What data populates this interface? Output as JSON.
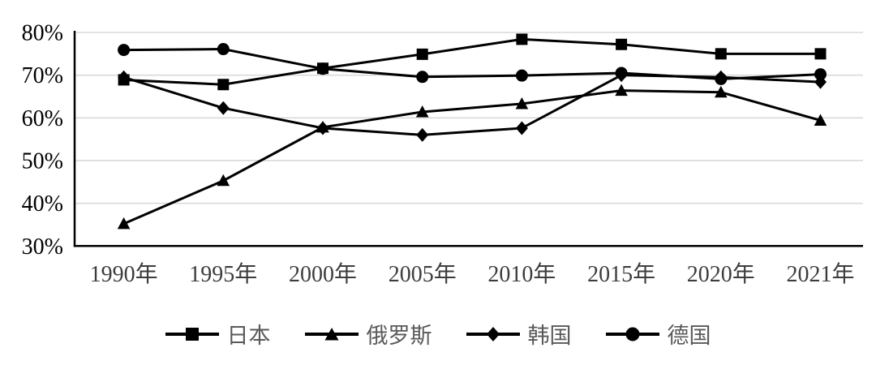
{
  "chart_data": {
    "type": "line",
    "title": "",
    "xlabel": "",
    "ylabel": "",
    "categories": [
      "1990年",
      "1995年",
      "2000年",
      "2005年",
      "2010年",
      "2015年",
      "2020年",
      "2021年"
    ],
    "series": [
      {
        "name": "日本",
        "marker": "square",
        "values": [
          68.9,
          67.8,
          71.6,
          74.9,
          78.4,
          77.2,
          75.0,
          75.0
        ]
      },
      {
        "name": "俄罗斯",
        "marker": "triangle",
        "values": [
          35.2,
          45.3,
          57.8,
          61.4,
          63.3,
          66.4,
          66.0,
          59.4
        ]
      },
      {
        "name": "韩国",
        "marker": "diamond",
        "values": [
          69.5,
          62.3,
          57.6,
          56.0,
          57.6,
          70.0,
          69.5,
          68.4
        ]
      },
      {
        "name": "德国",
        "marker": "circle",
        "values": [
          75.9,
          76.1,
          71.5,
          69.6,
          69.9,
          70.5,
          69.1,
          70.2
        ]
      }
    ],
    "ylim": [
      30,
      80
    ],
    "ytick_step": 10,
    "ytick_labels": [
      "30%",
      "40%",
      "50%",
      "60%",
      "70%",
      "80%"
    ],
    "grid": true,
    "legend_position": "bottom",
    "colors": {
      "series_line": "#000000",
      "gridline": "#d9d9d9",
      "axis": "#000000",
      "ytick_label": "#000000",
      "xtick_label": "#3d3d3d",
      "legend_text": "#595959",
      "background": "#ffffff"
    }
  }
}
